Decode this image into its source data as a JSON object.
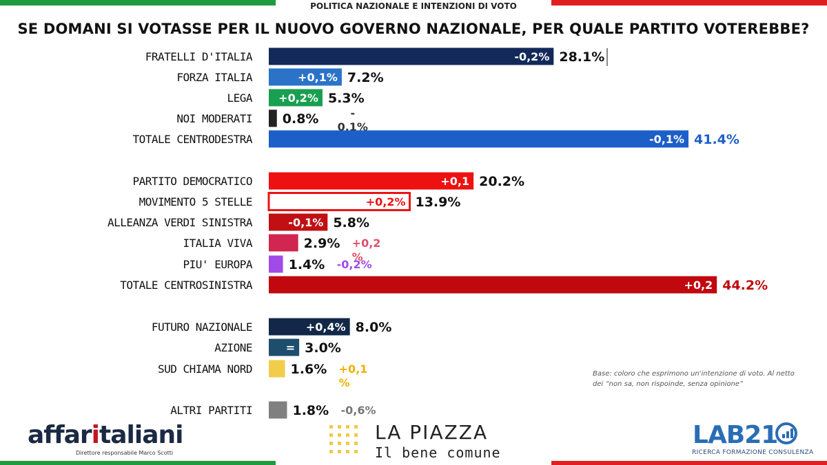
{
  "header": "POLITICA NAZIONALE E INTENZIONI DI VOTO",
  "question": "SE DOMANI SI VOTASSE PER IL NUOVO GOVERNO NAZIONALE, PER QUALE PARTITO VOTEREBBE?",
  "note": "Base: coloro che esprimono un'intenzione di voto. Al netto dei “non sa, non rispoinde, senza opinione”",
  "logos": {
    "affaritaliani": {
      "pre": "affar",
      "accent": "i",
      "post": "taliani",
      "sub": "Direttore responsabile Marco Scotti"
    },
    "lapiazza": {
      "title": "LA PIAZZA",
      "sub": "Il bene comune"
    },
    "lab21": {
      "title": "LAB21",
      "sub": "RICERCA FORMAZIONE CONSULENZA"
    }
  },
  "colors": {
    "flag_green": "#1f9a3e",
    "flag_white": "#ffffff",
    "flag_red": "#e02020"
  },
  "chart_data": {
    "type": "bar",
    "orientation": "horizontal",
    "xlim": [
      0,
      45
    ],
    "grid": false,
    "categories": [
      {
        "label": "FRATELLI D'ITALIA",
        "value": 28.1,
        "value_label": "28.1%",
        "change": "-0,2%",
        "color": "#13295a",
        "change_pos": "inside",
        "change_color": "#ffffff",
        "value_color": "#111111"
      },
      {
        "label": "FORZA ITALIA",
        "value": 7.2,
        "value_label": "7.2%",
        "change": "+0,1%",
        "color": "#2a73c9",
        "change_pos": "inside",
        "change_color": "#ffffff",
        "value_color": "#111111"
      },
      {
        "label": "LEGA",
        "value": 5.3,
        "value_label": "5.3%",
        "change": "+0,2%",
        "color": "#18a050",
        "change_pos": "inside",
        "change_color": "#ffffff",
        "value_color": "#111111"
      },
      {
        "label": "NOI MODERATI",
        "value": 0.8,
        "value_label": "0.8%",
        "change": "-\n0,1%",
        "color": "#222222",
        "change_pos": "below",
        "change_color": "#333333",
        "value_color": "#111111"
      },
      {
        "label": "TOTALE CENTRODESTRA",
        "value": 41.4,
        "value_label": "41.4%",
        "change": "-0,1%",
        "color": "#1d5fc8",
        "change_pos": "inside",
        "change_color": "#ffffff",
        "value_color": "#1d5fc8"
      },
      {
        "label": "PARTITO DEMOCRATICO",
        "value": 20.2,
        "value_label": "20.2%",
        "change": "+0,1",
        "color": "#ee1111",
        "change_pos": "inside",
        "change_color": "#ffffff",
        "value_color": "#111111"
      },
      {
        "label": "MOVIMENTO 5 STELLE",
        "value": 13.9,
        "value_label": "13.9%",
        "change": "+0,2%",
        "color": "#ffffff",
        "stroke": "#ee1111",
        "change_pos": "inside",
        "change_color": "#ee1111",
        "value_color": "#111111"
      },
      {
        "label": "ALLEANZA VERDI SINISTRA",
        "value": 5.8,
        "value_label": "5.8%",
        "change": "-0,1%",
        "color": "#c01014",
        "change_pos": "inside",
        "change_color": "#ffffff",
        "value_color": "#111111"
      },
      {
        "label": "ITALIA VIVA",
        "value": 2.9,
        "value_label": "2.9%",
        "change": "+0,2\n%",
        "color": "#d1264f",
        "change_pos": "right",
        "change_color": "#e0506a",
        "value_color": "#111111"
      },
      {
        "label": "PIU' EUROPA",
        "value": 1.4,
        "value_label": "1.4%",
        "change": "-0,2%",
        "color": "#a04be8",
        "change_pos": "right",
        "change_color": "#a04be8",
        "value_color": "#111111"
      },
      {
        "label": "TOTALE CENTROSINISTRA",
        "value": 44.2,
        "value_label": "44.2%",
        "change": "+0,2",
        "color": "#c0080e",
        "change_pos": "inside",
        "change_color": "#ffffff",
        "value_color": "#c0080e"
      },
      {
        "label": "FUTURO NAZIONALE",
        "value": 8.0,
        "value_label": "8.0%",
        "change": "+0,4%",
        "color": "#132848",
        "change_pos": "inside",
        "change_color": "#ffffff",
        "value_color": "#111111"
      },
      {
        "label": "AZIONE",
        "value": 3.0,
        "value_label": "3.0%",
        "change": "=",
        "color": "#1d4e6e",
        "change_pos": "inside",
        "change_color": "#ffffff",
        "value_color": "#111111"
      },
      {
        "label": "SUD CHIAMA NORD",
        "value": 1.6,
        "value_label": "1.6%",
        "change": "+0,1\n%",
        "color": "#f2cd4b",
        "change_pos": "right",
        "change_color": "#f0b000",
        "value_color": "#111111"
      },
      {
        "label": "ALTRI PARTITI",
        "value": 1.8,
        "value_label": "1.8%",
        "change": "-0,6%",
        "color": "#808080",
        "change_pos": "right",
        "change_color": "#777777",
        "value_color": "#111111"
      }
    ]
  }
}
